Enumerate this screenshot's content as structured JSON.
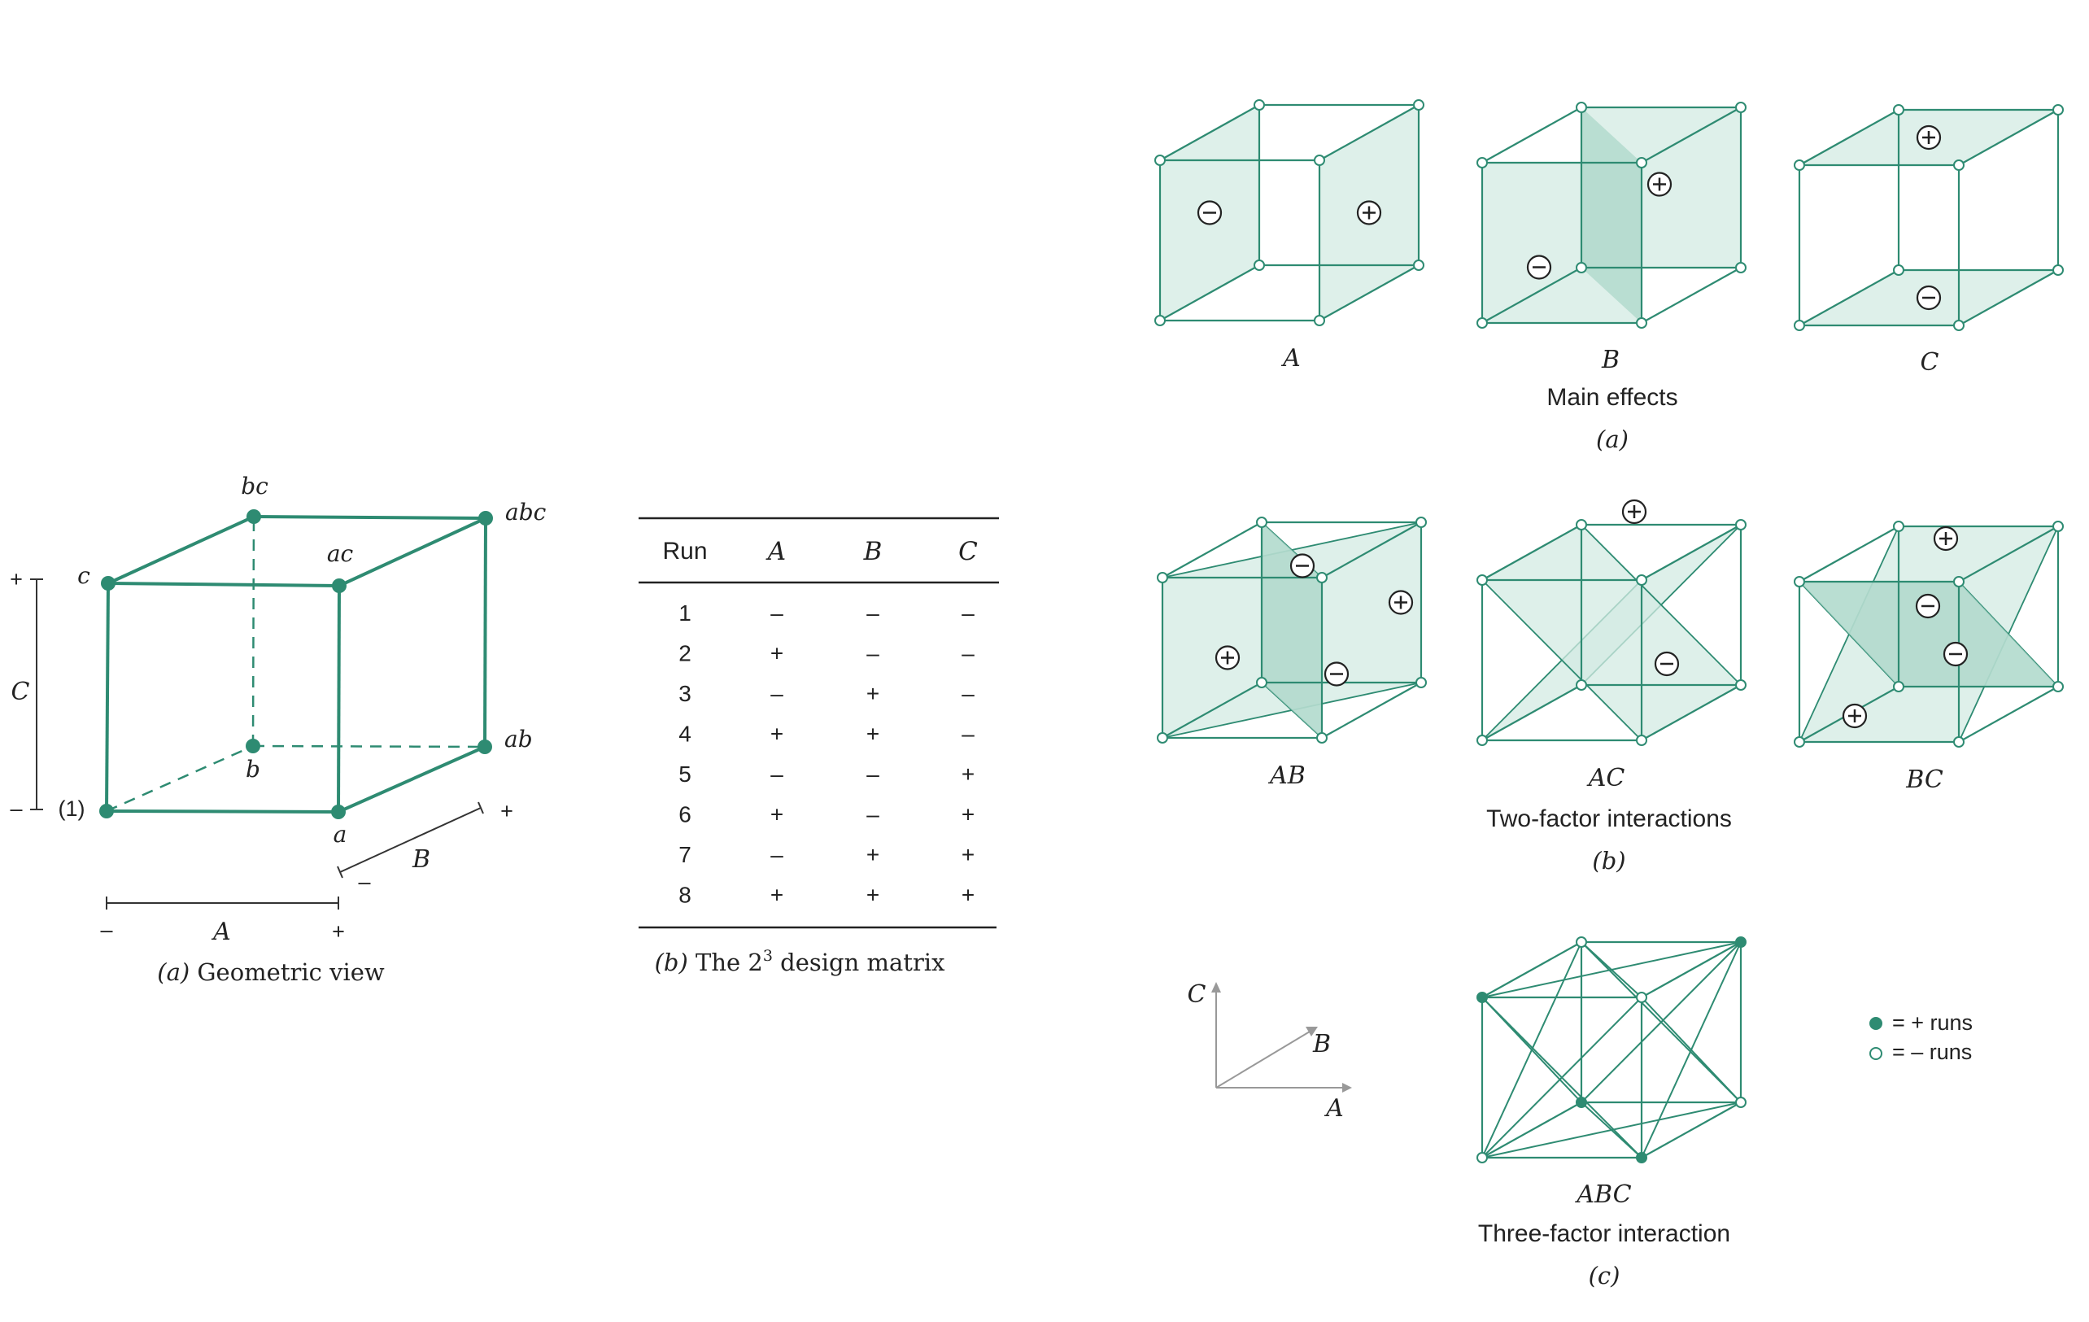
{
  "geometric_view": {
    "caption_letter": "(a)",
    "caption_text": "Geometric view",
    "vertex_labels": {
      "one": "(1)",
      "a": "a",
      "b": "b",
      "ab": "ab",
      "c": "c",
      "ac": "ac",
      "bc": "bc",
      "abc": "abc"
    },
    "axis_A": {
      "name": "A",
      "minus": "–",
      "plus": "+"
    },
    "axis_B": {
      "name": "B",
      "minus": "–",
      "plus": "+"
    },
    "axis_C": {
      "name": "C",
      "minus": "–",
      "plus": "+"
    }
  },
  "design_matrix": {
    "caption_letter": "(b)",
    "caption_text": "The 2",
    "caption_sup": "3",
    "caption_rest": " design matrix",
    "headers": [
      "Run",
      "A",
      "B",
      "C"
    ],
    "rows": [
      [
        "1",
        "–",
        "–",
        "–"
      ],
      [
        "2",
        "+",
        "–",
        "–"
      ],
      [
        "3",
        "–",
        "+",
        "–"
      ],
      [
        "4",
        "+",
        "+",
        "–"
      ],
      [
        "5",
        "–",
        "–",
        "+"
      ],
      [
        "6",
        "+",
        "–",
        "+"
      ],
      [
        "7",
        "–",
        "+",
        "+"
      ],
      [
        "8",
        "+",
        "+",
        "+"
      ]
    ]
  },
  "effects": {
    "main": {
      "labels": [
        "A",
        "B",
        "C"
      ],
      "group_title": "Main effects",
      "caption": "(a)"
    },
    "two_factor": {
      "labels": [
        "AB",
        "AC",
        "BC"
      ],
      "group_title": "Two-factor interactions",
      "caption": "(b)"
    },
    "three_factor": {
      "label": "ABC",
      "group_title": "Three-factor interaction",
      "caption": "(c)"
    },
    "sign_plus": "+",
    "sign_minus": "–"
  },
  "axes_key": {
    "A": "A",
    "B": "B",
    "C": "C"
  },
  "legend": {
    "plus_runs": "= + runs",
    "minus_runs": "= – runs"
  },
  "colors": {
    "edge": "#2e8b72",
    "fill": "#d3ebe3",
    "fill_dark": "#a9d6c7",
    "text": "#222222"
  }
}
